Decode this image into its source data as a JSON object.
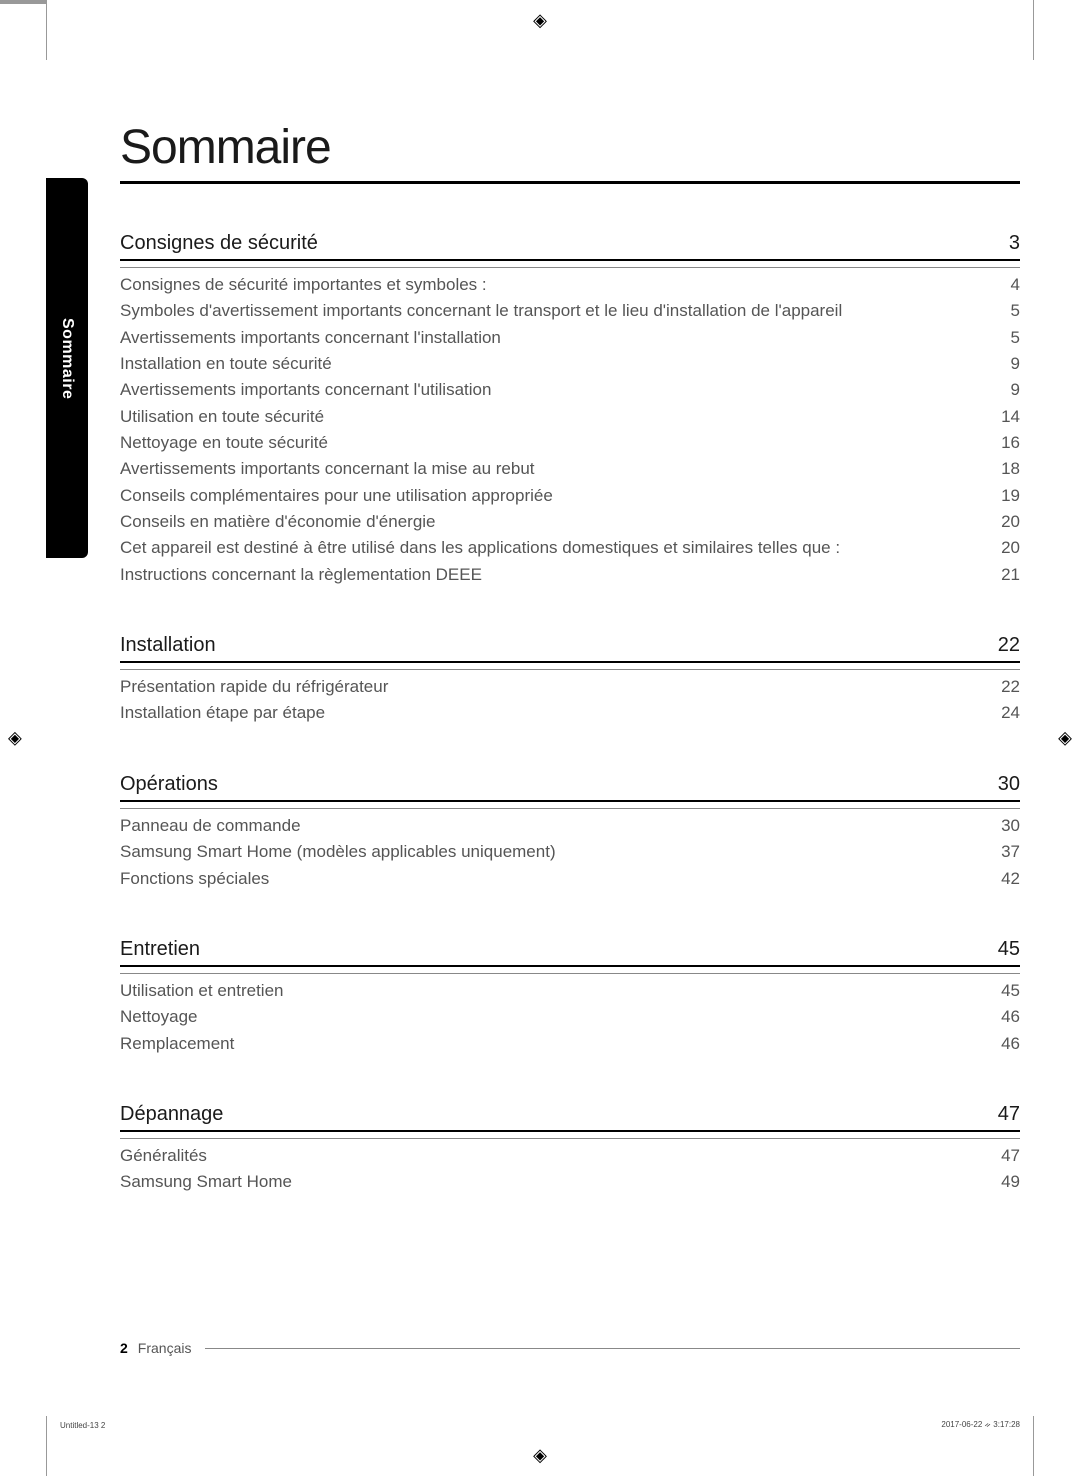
{
  "page_title": "Sommaire",
  "side_tab_label": "Sommaire",
  "sections": [
    {
      "title": "Consignes de sécurité",
      "page": "3",
      "items": [
        {
          "label": "Consignes de sécurité importantes et symboles :",
          "page": "4"
        },
        {
          "label": "Symboles d'avertissement importants concernant le transport et le lieu d'installation de l'appareil",
          "page": "5"
        },
        {
          "label": "Avertissements importants concernant l'installation",
          "page": "5"
        },
        {
          "label": "Installation en toute sécurité",
          "page": "9"
        },
        {
          "label": "Avertissements importants concernant l'utilisation",
          "page": "9"
        },
        {
          "label": "Utilisation en toute sécurité",
          "page": "14"
        },
        {
          "label": "Nettoyage en toute sécurité",
          "page": "16"
        },
        {
          "label": "Avertissements importants concernant la mise au rebut",
          "page": "18"
        },
        {
          "label": "Conseils complémentaires pour une utilisation appropriée",
          "page": "19"
        },
        {
          "label": "Conseils en matière d'économie d'énergie",
          "page": "20"
        },
        {
          "label": "Cet appareil est destiné à être utilisé dans les applications domestiques et similaires telles que :",
          "page": "20"
        },
        {
          "label": "Instructions concernant la règlementation DEEE",
          "page": "21"
        }
      ]
    },
    {
      "title": "Installation",
      "page": "22",
      "items": [
        {
          "label": "Présentation rapide du réfrigérateur",
          "page": "22"
        },
        {
          "label": "Installation étape par étape",
          "page": "24"
        }
      ]
    },
    {
      "title": "Opérations",
      "page": "30",
      "items": [
        {
          "label": "Panneau de commande",
          "page": "30"
        },
        {
          "label": "Samsung Smart Home (modèles applicables uniquement)",
          "page": "37"
        },
        {
          "label": "Fonctions spéciales",
          "page": "42"
        }
      ]
    },
    {
      "title": "Entretien",
      "page": "45",
      "items": [
        {
          "label": "Utilisation et entretien",
          "page": "45"
        },
        {
          "label": "Nettoyage",
          "page": "46"
        },
        {
          "label": "Remplacement",
          "page": "46"
        }
      ]
    },
    {
      "title": "Dépannage",
      "page": "47",
      "items": [
        {
          "label": "Généralités",
          "page": "47"
        },
        {
          "label": "Samsung Smart Home",
          "page": "49"
        }
      ]
    }
  ],
  "footer": {
    "page_number": "2",
    "language": "Français"
  },
  "imprint": {
    "left": "Untitled-13   2",
    "right": "2017-06-22   ᨀ 3:17:28"
  },
  "colors": {
    "background": "#ffffff",
    "text_primary": "#1a1a1a",
    "text_secondary": "#555555",
    "rule_heavy": "#000000",
    "rule_light": "#888888",
    "tab_bg": "#000000",
    "tab_text": "#ffffff"
  },
  "typography": {
    "title_fontsize_pt": 36,
    "section_head_fontsize_pt": 15,
    "row_fontsize_pt": 12.5,
    "footer_fontsize_pt": 10
  }
}
